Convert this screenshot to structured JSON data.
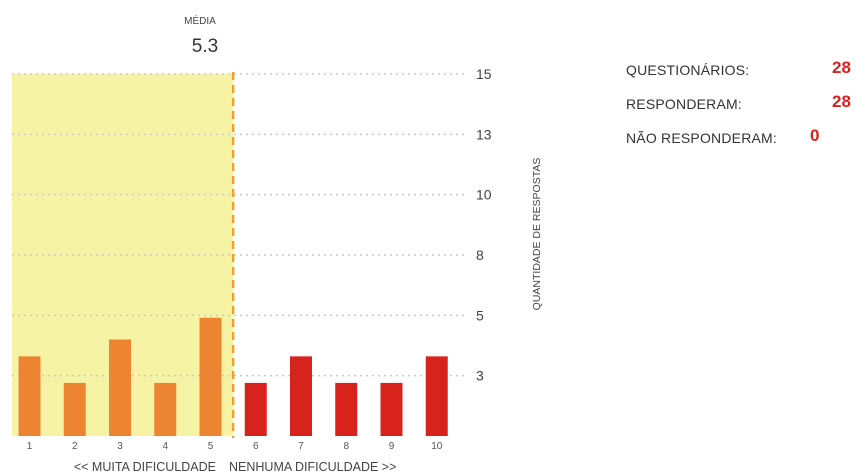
{
  "chart_data": {
    "type": "bar",
    "categories": [
      "1",
      "2",
      "3",
      "4",
      "5",
      "6",
      "7",
      "8",
      "9",
      "10"
    ],
    "values": [
      3.3,
      2.2,
      4.0,
      2.2,
      4.9,
      2.2,
      3.3,
      2.2,
      2.2,
      3.3
    ],
    "y_ticks": [
      "3",
      "5",
      "8",
      "10",
      "13",
      "15"
    ],
    "ylim": [
      0,
      15
    ],
    "ylabel": "QUANTIDADE DE RESPOSTAS",
    "mean_label": "MÉDIA",
    "mean_value": "5.3",
    "x_left_label": "<< MUITA DIFICULDADE",
    "x_right_label": "NENHUMA DIFICULDADE >>",
    "colors": {
      "low_bars": "#ec8432",
      "high_bars": "#d8231d",
      "highlight": "#f6f4a4",
      "mean_line": "#f0a030",
      "grid": "#c8c8c8"
    },
    "grid": true
  },
  "stats": [
    {
      "label": "QUESTIONÁRIOS:",
      "value": "28"
    },
    {
      "label": "RESPONDERAM:",
      "value": "28"
    },
    {
      "label": "NÃO RESPONDERAM:",
      "value": "0"
    }
  ],
  "stat_value_color": "#d8231d"
}
